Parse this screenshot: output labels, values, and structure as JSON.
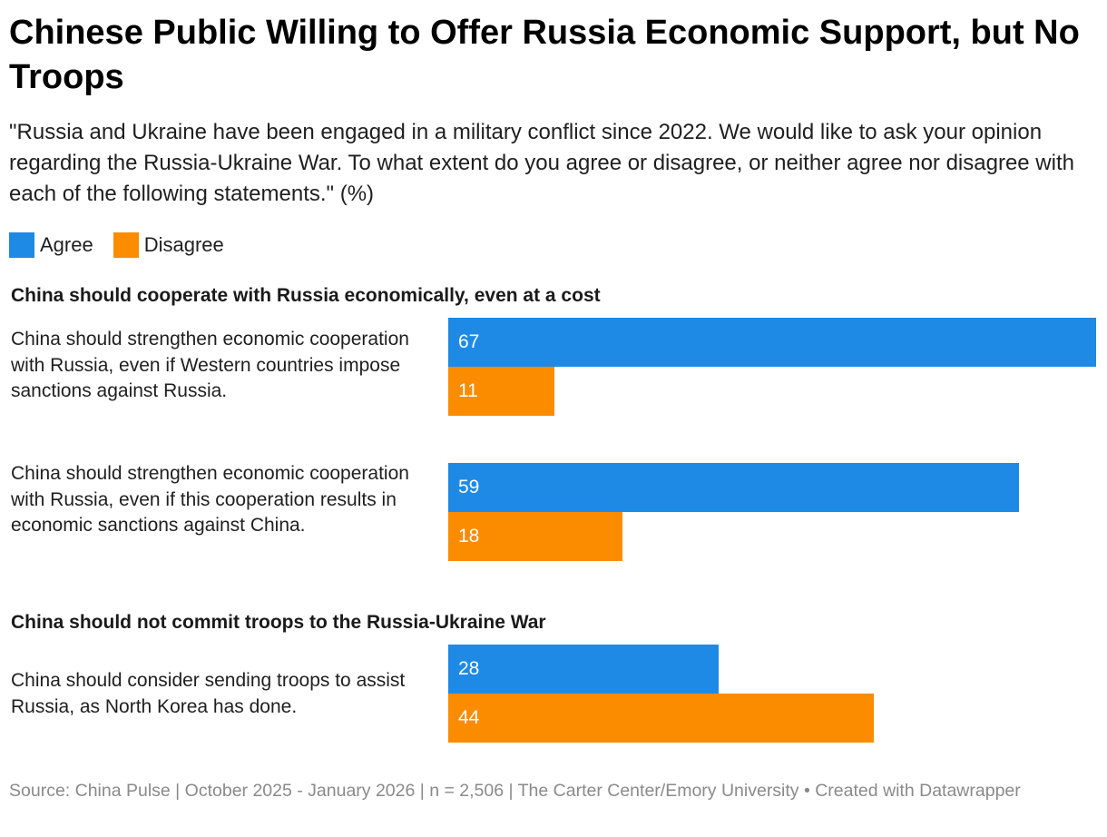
{
  "header": {
    "title": "Chinese Public Willing to Offer Russia Economic Support, but No Troops",
    "subtitle": "\"Russia and Ukraine have been engaged in a military conflict since 2022. We would like to ask your opinion regarding the Russia-Ukraine War. To what extent do you agree or disagree, or neither agree nor disagree with each of the following statements.\" (%)"
  },
  "legend": [
    {
      "label": "Agree",
      "color": "#1f8ae5"
    },
    {
      "label": "Disagree",
      "color": "#fb8c00"
    }
  ],
  "groups": [
    {
      "label": "China should cooperate with Russia economically, even at a cost"
    },
    {
      "label": "China should not commit troops to the Russia-Ukraine War"
    }
  ],
  "footer": {
    "source": "Source: China Pulse | October 2025 - January 2026 | n = 2,506 | The Carter Center/Emory University • Created with Datawrapper"
  },
  "chart_data": {
    "type": "bar",
    "orientation": "horizontal",
    "xlim": [
      0,
      67
    ],
    "categories": [
      "China should strengthen economic cooperation with Russia, even if Western countries impose sanctions against Russia.",
      "China should strengthen economic cooperation with Russia, even if this cooperation results in economic sanctions against China.",
      "China should consider sending troops to assist Russia, as North Korea has done."
    ],
    "series": [
      {
        "name": "Agree",
        "color": "#1f8ae5",
        "values": [
          67,
          59,
          28
        ]
      },
      {
        "name": "Disagree",
        "color": "#fb8c00",
        "values": [
          11,
          18,
          44
        ]
      }
    ]
  }
}
